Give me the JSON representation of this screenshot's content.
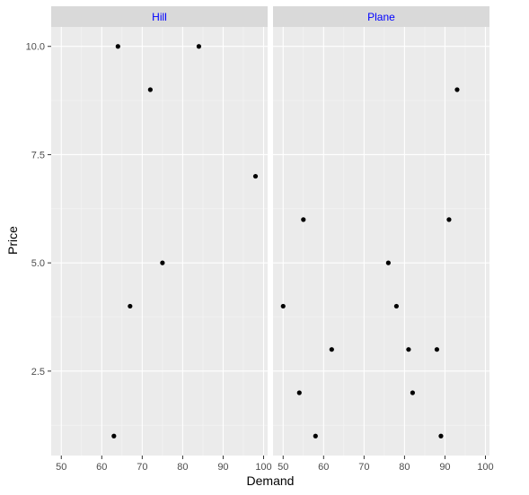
{
  "chart_data": {
    "type": "scatter",
    "xlabel": "Demand",
    "ylabel": "Price",
    "xlim": [
      47.5,
      101
    ],
    "ylim": [
      0.55,
      10.45
    ],
    "x_ticks": [
      50,
      60,
      70,
      80,
      90,
      100
    ],
    "x_tick_labels": [
      "50",
      "60",
      "70",
      "80",
      "90",
      "100"
    ],
    "y_ticks": [
      2.5,
      5.0,
      7.5,
      10.0
    ],
    "y_tick_labels": [
      "2.5",
      "5.0",
      "7.5",
      "10.0"
    ],
    "grid": true,
    "point_color": "#000000",
    "panel_background": "#ebebeb",
    "strip_background": "#d9d9d9",
    "strip_text_color": "#0000ff",
    "facets": [
      {
        "label": "Hill",
        "points": [
          {
            "x": 64,
            "y": 10
          },
          {
            "x": 84,
            "y": 10
          },
          {
            "x": 72,
            "y": 9
          },
          {
            "x": 98,
            "y": 7
          },
          {
            "x": 75,
            "y": 5
          },
          {
            "x": 67,
            "y": 4
          },
          {
            "x": 63,
            "y": 1
          }
        ]
      },
      {
        "label": "Plane",
        "points": [
          {
            "x": 93,
            "y": 9
          },
          {
            "x": 55,
            "y": 6
          },
          {
            "x": 91,
            "y": 6
          },
          {
            "x": 76,
            "y": 5
          },
          {
            "x": 50,
            "y": 4
          },
          {
            "x": 78,
            "y": 4
          },
          {
            "x": 62,
            "y": 3
          },
          {
            "x": 81,
            "y": 3
          },
          {
            "x": 88,
            "y": 3
          },
          {
            "x": 54,
            "y": 2
          },
          {
            "x": 82,
            "y": 2
          },
          {
            "x": 58,
            "y": 1
          },
          {
            "x": 89,
            "y": 1
          }
        ]
      }
    ]
  }
}
